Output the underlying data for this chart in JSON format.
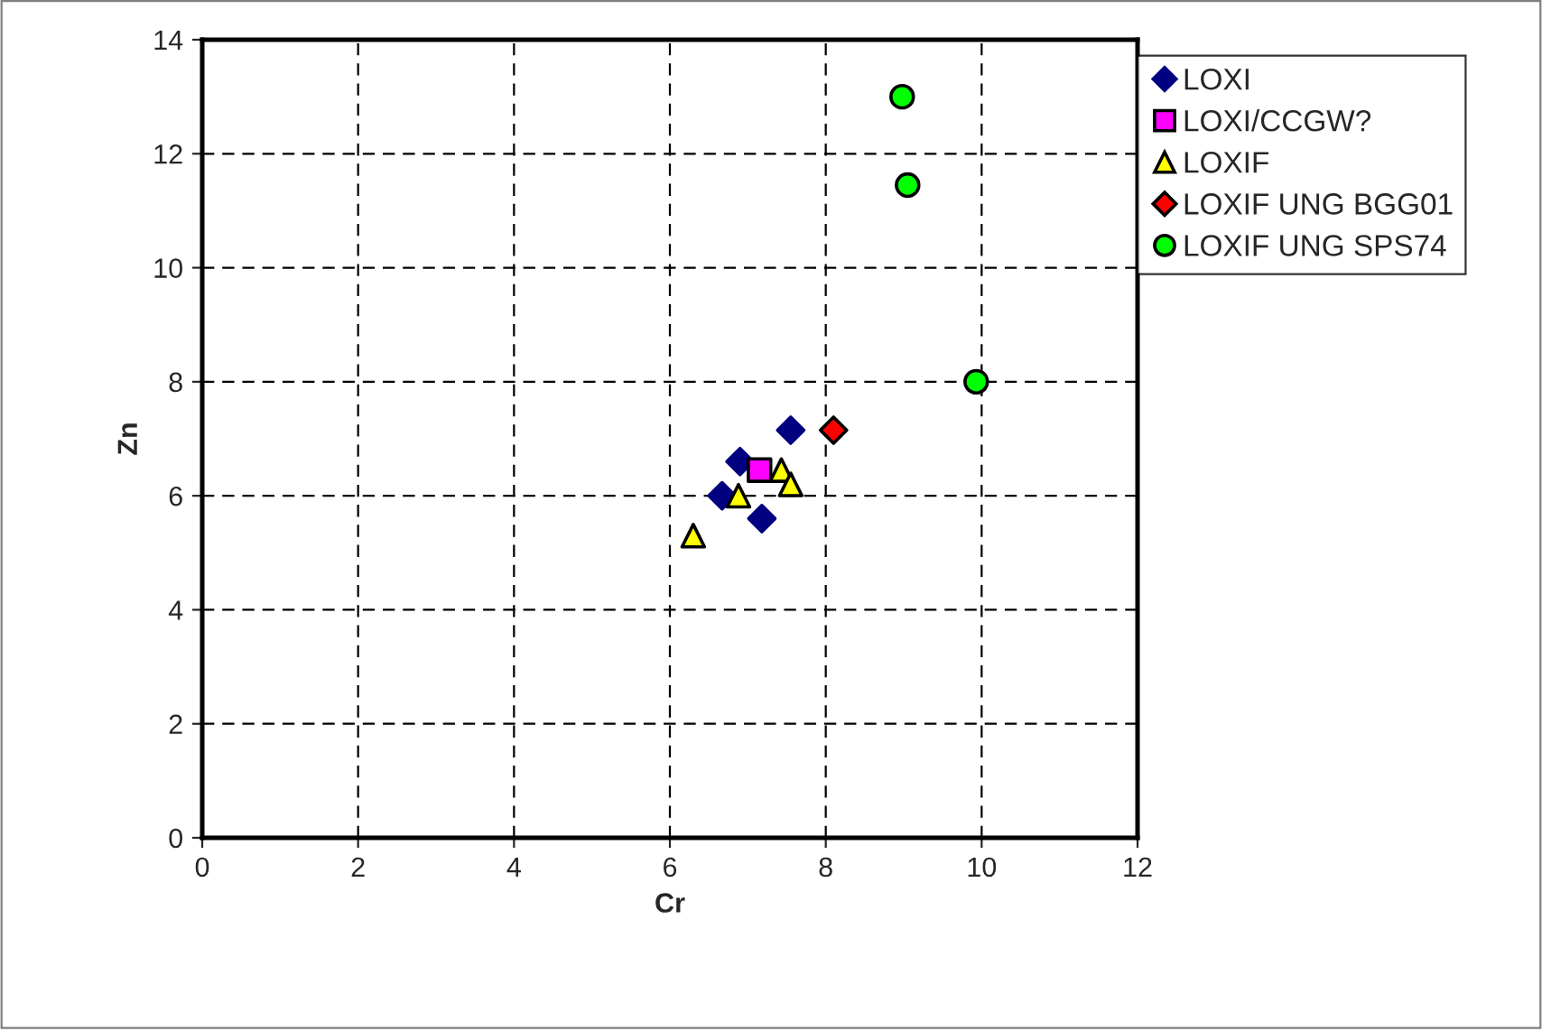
{
  "chart_data": {
    "type": "scatter",
    "xlabel": "Cr",
    "ylabel": "Zn",
    "xlim": [
      0,
      12
    ],
    "ylim": [
      0,
      14
    ],
    "xticks": [
      0,
      2,
      4,
      6,
      8,
      10,
      12
    ],
    "yticks": [
      0,
      2,
      4,
      6,
      8,
      10,
      12,
      14
    ],
    "grid": true,
    "legend": "top right",
    "series": [
      {
        "name": "LOXI",
        "color": "#000080",
        "marker": "diamond",
        "x": [
          6.9,
          6.67,
          7.18,
          7.55
        ],
        "values": [
          6.6,
          6.0,
          5.6,
          7.15
        ]
      },
      {
        "name": "LOXI/CCGW?",
        "color": "#ff00ff",
        "marker": "square",
        "x": [
          7.15
        ],
        "values": [
          6.45
        ]
      },
      {
        "name": "LOXIF",
        "color": "#ffff00",
        "marker": "triangle",
        "x": [
          6.3,
          6.88,
          7.43,
          7.55
        ],
        "values": [
          5.3,
          6.0,
          6.45,
          6.2
        ]
      },
      {
        "name": "LOXIF UNG BGG01",
        "color": "#ff0000",
        "marker": "diamond",
        "x": [
          8.1
        ],
        "values": [
          7.15
        ]
      },
      {
        "name": "LOXIF UNG SPS74",
        "color": "#00ff00",
        "marker": "circle",
        "x": [
          8.98,
          9.05,
          9.93
        ],
        "values": [
          13.0,
          11.45,
          8.0
        ]
      }
    ]
  }
}
